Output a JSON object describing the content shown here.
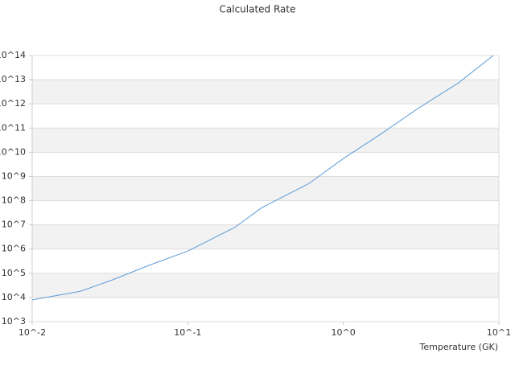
{
  "chart_data": {
    "type": "line",
    "title": "Calculated Rate",
    "x_label": "Temperature (GK)",
    "x": [
      0.01,
      0.0204,
      0.033,
      0.056,
      0.1,
      0.2,
      0.3,
      0.6,
      1,
      1.7,
      3,
      5.5,
      9.2
    ],
    "series": [
      {
        "name": "Calculated Rate",
        "color": "#5b9bd5",
        "values": [
          8000,
          18000,
          54000,
          210000,
          830000,
          7800000,
          52000000,
          510000000,
          5500000000,
          51000000000,
          630000000000,
          7400000000000,
          100000000000000
        ]
      }
    ],
    "xlog": true,
    "ylog": true,
    "xlim": [
      0.01,
      10
    ],
    "xticks": [
      {
        "value": 0.01,
        "label": "10^-2"
      },
      {
        "value": 0.1,
        "label": "10^-1"
      },
      {
        "value": 1,
        "label": "10^0"
      },
      {
        "value": 10,
        "label": "10^1"
      }
    ],
    "ylim": [
      1000,
      100000000000000
    ],
    "yticks": [
      {
        "value": 1000,
        "label": "10^3"
      },
      {
        "value": 10000,
        "label": "10^4"
      },
      {
        "value": 100000,
        "label": "10^5"
      },
      {
        "value": 1000000,
        "label": "10^6"
      },
      {
        "value": 10000000,
        "label": "10^7"
      },
      {
        "value": 100000000,
        "label": "10^8"
      },
      {
        "value": 1000000000,
        "label": "10^9"
      },
      {
        "value": 10000000000,
        "label": "10^10"
      },
      {
        "value": 100000000000,
        "label": "10^11"
      },
      {
        "value": 1000000000000,
        "label": "10^12"
      },
      {
        "value": 10000000000000,
        "label": "10^13"
      },
      {
        "value": 100000000000000,
        "label": "10^14"
      }
    ],
    "grid": true
  }
}
